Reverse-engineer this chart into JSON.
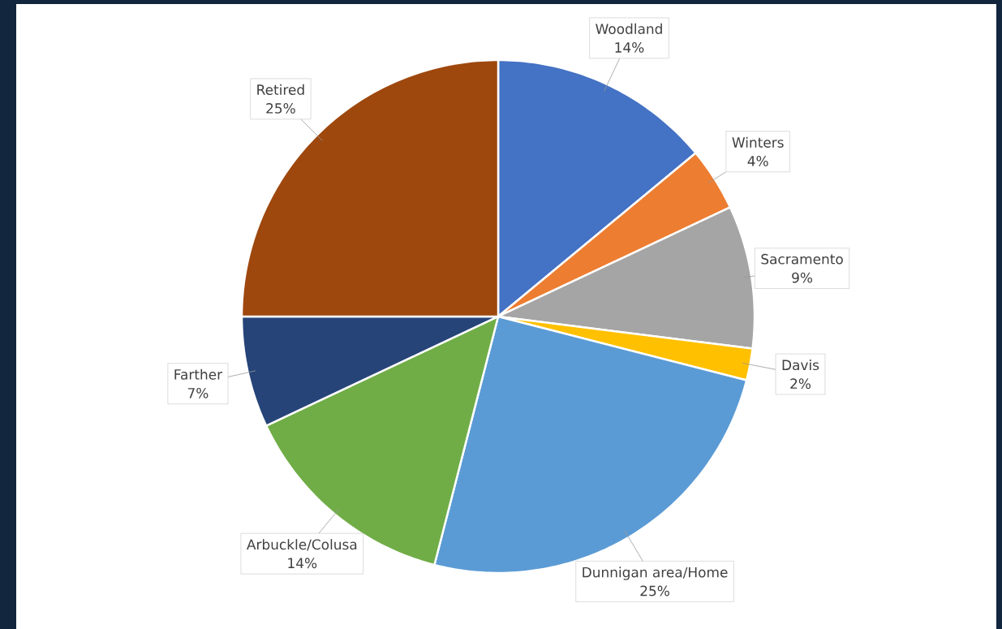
{
  "chart_data": {
    "type": "pie",
    "categories": [
      "Woodland",
      "Winters",
      "Sacramento",
      "Davis",
      "Dunnigan area/Home",
      "Arbuckle/Colusa",
      "Farther",
      "Retired"
    ],
    "values": [
      14,
      4,
      9,
      2,
      25,
      14,
      7,
      25
    ],
    "colors": [
      "#4472c4",
      "#ed7d31",
      "#a5a5a5",
      "#ffc000",
      "#5b9bd5",
      "#70ad47",
      "#264478",
      "#9e480e"
    ],
    "value_labels": [
      "14%",
      "4%",
      "9%",
      "2%",
      "25%",
      "14%",
      "7%",
      "25%"
    ]
  }
}
